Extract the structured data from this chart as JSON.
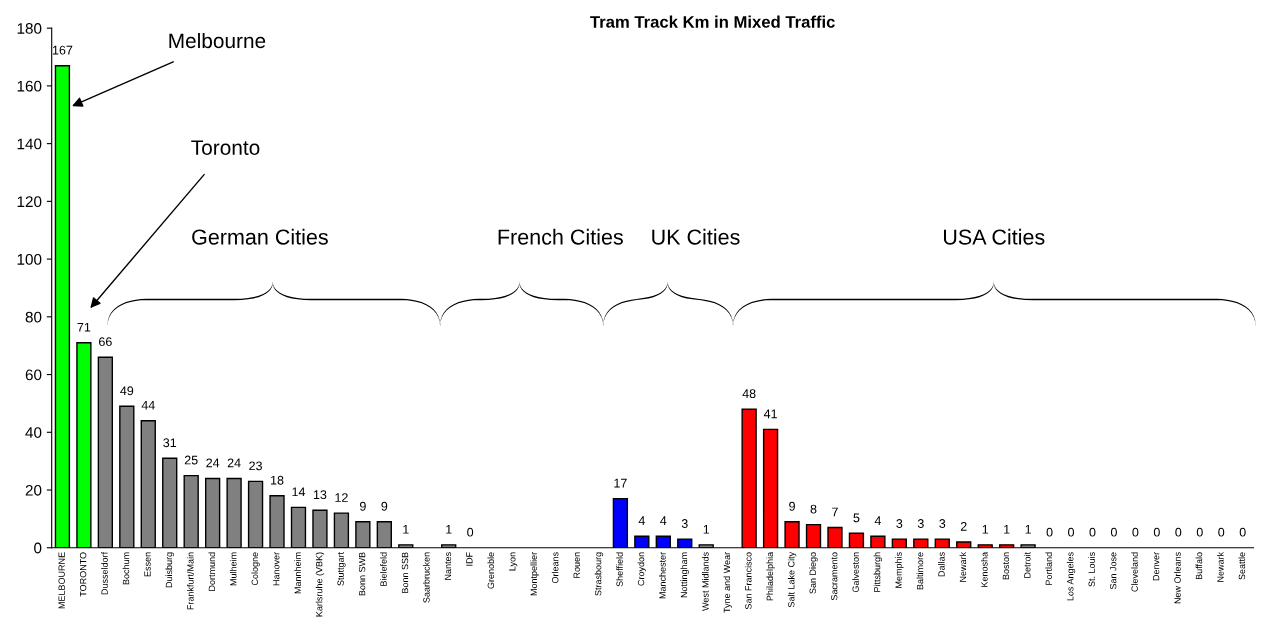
{
  "chart_data": {
    "type": "bar",
    "title": "Tram Track Km in Mixed Traffic",
    "categories": [
      "MELBOURNE",
      "TORONTO",
      "Dusseldorf",
      "Bochum",
      "Essen",
      "Duisburg",
      "Frankfurt/Main",
      "Dortmund",
      "Mulheim",
      "Cologne",
      "Hanover",
      "Mannheim",
      "Karlsruhe (VBK)",
      "Stuttgart",
      "Bonn SWB",
      "Bielefeld",
      "Bonn SSB",
      "Saarbrucken",
      "Nantes",
      "IDF",
      "Grenoble",
      "Lyon",
      "Montpellier",
      "Orleans",
      "Rouen",
      "Strasbourg",
      "Sheffield",
      "Croydon",
      "Manchester",
      "Nottingham",
      "West Midlands",
      "Tyne and Wear",
      "San Francisco",
      "Philadelphia",
      "Salt Lake City",
      "San Diego",
      "Sacramento",
      "Galveston",
      "Pittsburgh",
      "Memphis",
      "Baltimore",
      "Dallas",
      "Newark",
      "Kenosha",
      "Boston",
      "Detroit",
      "Portland",
      "Los Angeles",
      "St. Louis",
      "San Jose",
      "Cleveland",
      "Denver",
      "New Orleans",
      "Buffalo",
      "Newark",
      "Seattle"
    ],
    "values": [
      167,
      71,
      66,
      49,
      44,
      31,
      25,
      24,
      24,
      23,
      18,
      14,
      13,
      12,
      9,
      9,
      1,
      null,
      1,
      0,
      null,
      null,
      null,
      null,
      null,
      null,
      17,
      4,
      4,
      3,
      1,
      null,
      48,
      41,
      9,
      8,
      7,
      5,
      4,
      3,
      3,
      3,
      2,
      1,
      1,
      1,
      0,
      0,
      0,
      0,
      0,
      0,
      0,
      0,
      0,
      0
    ],
    "colors": [
      "#00ff00",
      "#00ff00",
      "#808080",
      "#808080",
      "#808080",
      "#808080",
      "#808080",
      "#808080",
      "#808080",
      "#808080",
      "#808080",
      "#808080",
      "#808080",
      "#808080",
      "#808080",
      "#808080",
      "#808080",
      "#808080",
      "#808080",
      "#808080",
      "#808080",
      "#808080",
      "#808080",
      "#808080",
      "#808080",
      "#808080",
      "#0000ff",
      "#0000ff",
      "#0000ff",
      "#0000ff",
      "#808080",
      "#808080",
      "#ff0000",
      "#ff0000",
      "#ff0000",
      "#ff0000",
      "#ff0000",
      "#ff0000",
      "#ff0000",
      "#ff0000",
      "#ff0000",
      "#ff0000",
      "#ff0000",
      "#ff0000",
      "#ff0000",
      "#808080",
      "#ff0000",
      "#ff0000",
      "#ff0000",
      "#ff0000",
      "#ff0000",
      "#ff0000",
      "#ff0000",
      "#ff0000",
      "#ff0000",
      "#ff0000"
    ],
    "data_labels": true,
    "ylim": [
      0,
      180
    ],
    "yticks": [
      0,
      20,
      40,
      60,
      80,
      100,
      120,
      140,
      160,
      180
    ],
    "grid": false,
    "legend": false,
    "annotations": [
      "Melbourne",
      "Toronto",
      "German Cities",
      "French Cities",
      "UK Cities",
      "USA Cities"
    ]
  }
}
